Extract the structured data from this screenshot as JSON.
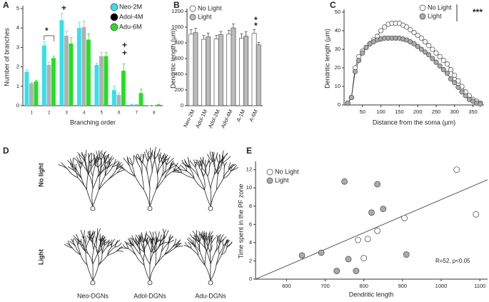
{
  "chart_data": [
    {
      "type": "bar",
      "panel": "A",
      "xlabel": "Branching order",
      "ylabel": "Number of branches",
      "categories": [
        "1",
        "2",
        "3",
        "4",
        "5",
        "6",
        "7",
        "8"
      ],
      "series": [
        {
          "name": "Neo-2M",
          "color": "#33e0ee",
          "legend_color": "#33e0ee",
          "values": [
            1.75,
            3.1,
            4.4,
            4.0,
            2.1,
            0.8,
            0.05,
            0
          ],
          "errors": [
            0.1,
            0.2,
            0.35,
            0.3,
            0.1,
            0.2,
            0.02,
            0
          ]
        },
        {
          "name": "Adol-4M",
          "color": "#b0b0b0",
          "legend_color": "#000000",
          "values": [
            1.15,
            2.1,
            3.6,
            4.05,
            2.55,
            0.55,
            0.05,
            0
          ],
          "errors": [
            0.05,
            0.15,
            0.25,
            0.3,
            0.2,
            0.1,
            0.02,
            0
          ]
        },
        {
          "name": "Adu-6M",
          "color": "#22e022",
          "legend_color": "#22e022",
          "values": [
            1.25,
            2.45,
            3.2,
            3.4,
            2.55,
            1.8,
            0.65,
            0.05
          ],
          "errors": [
            0.05,
            0.1,
            0.3,
            0.3,
            0.2,
            0.35,
            0.2,
            0.02
          ]
        }
      ],
      "ylim": [
        0,
        5
      ],
      "yticks": [
        0,
        1,
        2,
        3,
        4,
        5
      ],
      "annotations": [
        "*",
        "+",
        "+",
        "+"
      ]
    },
    {
      "type": "bar",
      "panel": "B",
      "ylabel": "Dendritic length (µm)",
      "categories": [
        "Neo-2M",
        "Adol-1M",
        "Adol-2M",
        "Adol-4M",
        "A-1M",
        "A-6M"
      ],
      "series": [
        {
          "name": "No Light",
          "color": "#ffffff",
          "legend_color": "#ffffff",
          "values": [
            910,
            845,
            850,
            910,
            860,
            920
          ],
          "errors": [
            60,
            50,
            45,
            50,
            55,
            50
          ]
        },
        {
          "name": "Light",
          "color": "#bbbbbb",
          "legend_color": "#bbbbbb",
          "values": [
            930,
            875,
            905,
            990,
            885,
            775
          ],
          "errors": [
            55,
            50,
            40,
            50,
            55,
            30
          ]
        }
      ],
      "ylim": [
        0,
        1200
      ],
      "yticks": [
        0,
        200,
        400,
        600,
        800,
        1000,
        1200
      ],
      "annotations": [
        "*",
        "*"
      ]
    },
    {
      "type": "line",
      "panel": "C",
      "xlabel": "Distance from the soma (µm)",
      "ylabel": "Dendritic length (µm)",
      "x": [
        10,
        20,
        30,
        40,
        50,
        60,
        70,
        80,
        90,
        100,
        110,
        120,
        130,
        140,
        150,
        160,
        170,
        180,
        190,
        200,
        210,
        220,
        230,
        240,
        250,
        260,
        270,
        280,
        290,
        300,
        310,
        320,
        330,
        340,
        350,
        360,
        370
      ],
      "series": [
        {
          "name": "No Light",
          "color": "#ffffff",
          "values": [
            1,
            4,
            20,
            26,
            29,
            31,
            33,
            35,
            37,
            40,
            42,
            43.5,
            44,
            44,
            44,
            43,
            42,
            40.5,
            39,
            37.5,
            36,
            34,
            32,
            30,
            28,
            26,
            24,
            22,
            19,
            16,
            13,
            10,
            7,
            5,
            3,
            2,
            1
          ]
        },
        {
          "name": "Light",
          "color": "#aaaaaa",
          "values": [
            1,
            4,
            18,
            24,
            28,
            31,
            33,
            34,
            35,
            35.5,
            36,
            36,
            36,
            36,
            36,
            35.5,
            35,
            34,
            33,
            31.5,
            30,
            28.5,
            27,
            25,
            23,
            21,
            19,
            17,
            14,
            12,
            9.5,
            7,
            5,
            3,
            2,
            1,
            0.5
          ]
        }
      ],
      "xlim": [
        0,
        380
      ],
      "xticks": [
        50,
        100,
        150,
        200,
        250,
        300,
        350
      ],
      "ylim": [
        0,
        50
      ],
      "yticks": [
        0,
        10,
        20,
        30,
        40,
        50
      ],
      "annotations": [
        "***"
      ]
    },
    {
      "type": "scatter",
      "panel": "E",
      "xlabel": "Dendritic length",
      "ylabel": "Time spent in the PF zone",
      "series": [
        {
          "name": "No Light",
          "color": "#ffffff",
          "x": [
            785,
            800,
            810,
            835,
            905,
            1040,
            1090
          ],
          "values": [
            4.3,
            2.3,
            4.4,
            5.3,
            6.7,
            12.0,
            7.1
          ]
        },
        {
          "name": "Light",
          "color": "#aaaaaa",
          "x": [
            640,
            690,
            730,
            750,
            780,
            760,
            820,
            835,
            850,
            910
          ],
          "values": [
            2.6,
            2.9,
            0.9,
            10.7,
            0.9,
            2.2,
            7.3,
            10.4,
            7.7,
            2.7
          ]
        }
      ],
      "fit": {
        "x": [
          520,
          1120
        ],
        "y": [
          0,
          10.9
        ]
      },
      "xlim": [
        520,
        1120
      ],
      "xticks": [
        600,
        700,
        800,
        900,
        1000,
        1100
      ],
      "ylim": [
        0,
        12.6
      ],
      "yticks": [
        0,
        2,
        4,
        6,
        8,
        10,
        12
      ],
      "annotations": [
        "R=52, p<0.05"
      ]
    }
  ],
  "panel_d": {
    "panel": "D",
    "rows": [
      "No light",
      "Light"
    ],
    "columns": [
      "Neo-DGNs",
      "Adol-DGNs",
      "Adu-DGNs"
    ]
  }
}
